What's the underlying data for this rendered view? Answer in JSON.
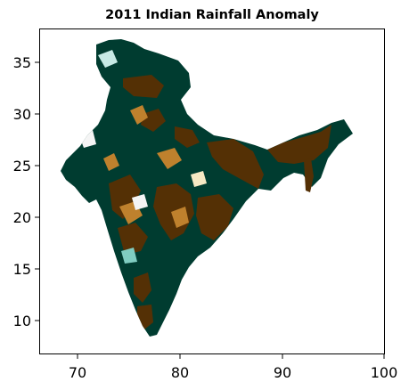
{
  "figure": {
    "title": "2011 Indian Rainfall Anomaly"
  },
  "map": {
    "xlim": [
      66.5,
      100
    ],
    "ylim": [
      6.5,
      38.5
    ],
    "x_ticks": [
      "70",
      "80",
      "90",
      "100"
    ],
    "y_ticks": [
      "10",
      "15",
      "20",
      "25",
      "30",
      "35"
    ],
    "colormap": "BrBG",
    "colors": {
      "deficit_dark": "#543005",
      "deficit_mid": "#bf812d",
      "neutral": "#f5f5f5",
      "surplus_mid": "#80cdc1",
      "surplus_dark": "#003c30"
    }
  }
}
